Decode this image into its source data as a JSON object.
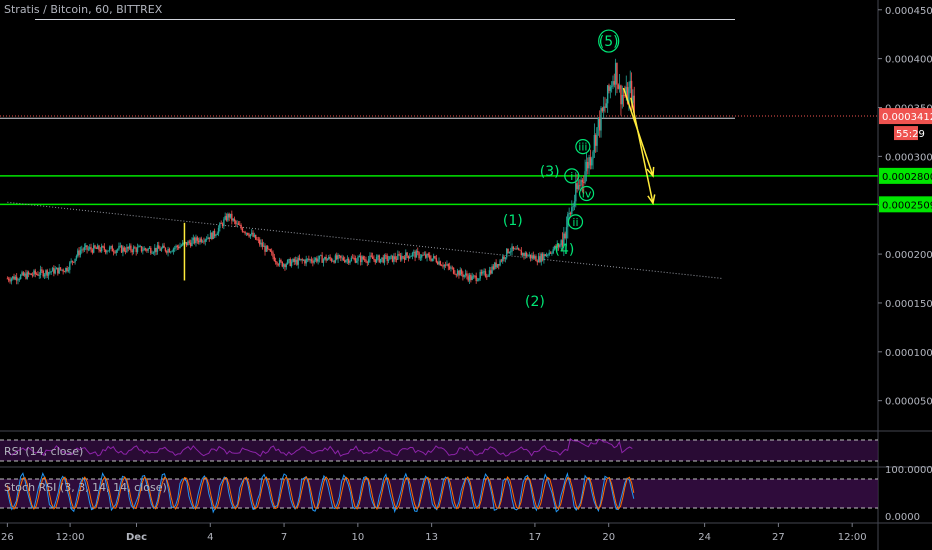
{
  "header": {
    "title": "Stratis / Bitcoin, 60, BITTREX"
  },
  "indicators": {
    "rsi_label": "RSI (14, close)",
    "stoch_label": "Stoch RSI (3, 3, 14, 14, close)"
  },
  "badges": {
    "last_price": "0.00034124",
    "countdown": "55:29",
    "level_upper": "0.00028004",
    "level_lower": "0.00025092"
  },
  "colors": {
    "background": "#000000",
    "up": "#26a69a",
    "down": "#ef5350",
    "level_line": "#00e600",
    "wave_label": "#00e676",
    "arrow": "#ffeb3b",
    "last_price": "#ef5350",
    "indicator_band": "#3b0f4a"
  },
  "chart_data": {
    "type": "candlestick",
    "title": "Stratis / Bitcoin, 60, BITTREX",
    "y_ticks": [
      "0.00045000",
      "0.00040000",
      "0.00035000",
      "0.00030000",
      "0.00025000",
      "0.00020000",
      "0.00015000",
      "0.00010000",
      "0.00005000"
    ],
    "ylim": [
      2e-05,
      0.00046
    ],
    "x_ticks": [
      "26",
      "12:00",
      "Dec",
      "4",
      "7",
      "10",
      "13",
      "17",
      "20",
      "24",
      "27",
      "12:00"
    ],
    "x_tick_positions": [
      0,
      8.5,
      17.5,
      27.5,
      37.5,
      47.5,
      57.5,
      71.5,
      81.5,
      94.5,
      104.5,
      114.5
    ],
    "xlim": [
      -1,
      118
    ],
    "price_path": [
      [
        0,
        0.000175
      ],
      [
        8,
        0.000185
      ],
      [
        10,
        0.000205
      ],
      [
        14,
        0.000205
      ],
      [
        18,
        0.000205
      ],
      [
        22,
        0.000205
      ],
      [
        24,
        0.00021
      ],
      [
        26,
        0.000215
      ],
      [
        28,
        0.00022
      ],
      [
        30,
        0.00024
      ],
      [
        31,
        0.00023
      ],
      [
        33,
        0.00022
      ],
      [
        35,
        0.000205
      ],
      [
        37,
        0.00019
      ],
      [
        42,
        0.000195
      ],
      [
        47,
        0.000195
      ],
      [
        52,
        0.000195
      ],
      [
        55,
        0.0002
      ],
      [
        58,
        0.000195
      ],
      [
        60,
        0.000185
      ],
      [
        63,
        0.000175
      ],
      [
        65,
        0.00018
      ],
      [
        67,
        0.000195
      ],
      [
        68,
        0.000205
      ],
      [
        70,
        0.0002
      ],
      [
        72,
        0.000195
      ],
      [
        74,
        0.000205
      ],
      [
        75,
        0.00021
      ],
      [
        76,
        0.000235
      ],
      [
        77,
        0.00026
      ],
      [
        78,
        0.00028
      ],
      [
        79,
        0.0003
      ],
      [
        80,
        0.00033
      ],
      [
        81,
        0.00035
      ],
      [
        82,
        0.00038
      ],
      [
        82.5,
        0.00039
      ],
      [
        83,
        0.000365
      ],
      [
        84,
        0.00036
      ],
      [
        84.5,
        0.00037
      ],
      [
        85,
        0.00034
      ]
    ],
    "levels": [
      {
        "value": 0.00044,
        "color": "#d1d4dc"
      },
      {
        "value": 0.00034124,
        "color": "#ef5350",
        "dotted": true
      },
      {
        "value": 0.000339,
        "color": "#d1d4dc"
      },
      {
        "value": 0.00028004,
        "color": "#00e600"
      },
      {
        "value": 0.00025092,
        "color": "#00e600"
      }
    ],
    "trendline": {
      "from": [
        0,
        0.000253
      ],
      "to": [
        97,
        0.000175
      ]
    },
    "vertical_marker": {
      "x": 24,
      "y1": 0.000173,
      "y2": 0.000232
    },
    "wave_labels": [
      {
        "text": "(1)",
        "x": 68.5,
        "y": 0.000235
      },
      {
        "text": "(2)",
        "x": 71.5,
        "y": 0.000152
      },
      {
        "text": "(3)",
        "x": 73.5,
        "y": 0.000285
      },
      {
        "text": "(4)",
        "x": 75.5,
        "y": 0.000205
      },
      {
        "text": "(5)",
        "x": 81.5,
        "y": 0.000418
      },
      {
        "text": "i",
        "x": 76.5,
        "y": 0.00028,
        "circled": true
      },
      {
        "text": "ii",
        "x": 77,
        "y": 0.000233,
        "circled": true
      },
      {
        "text": "iii",
        "x": 78,
        "y": 0.00031,
        "circled": true
      },
      {
        "text": "iv",
        "x": 78.5,
        "y": 0.000262,
        "circled": true
      }
    ],
    "arrows": [
      {
        "from": [
          83.5,
          0.00037
        ],
        "to": [
          87.5,
          0.00028
        ]
      },
      {
        "from": [
          84.5,
          0.00036
        ],
        "to": [
          87.5,
          0.000252
        ]
      }
    ],
    "stoch_scale": [
      "100.0000",
      "0.0000"
    ]
  }
}
